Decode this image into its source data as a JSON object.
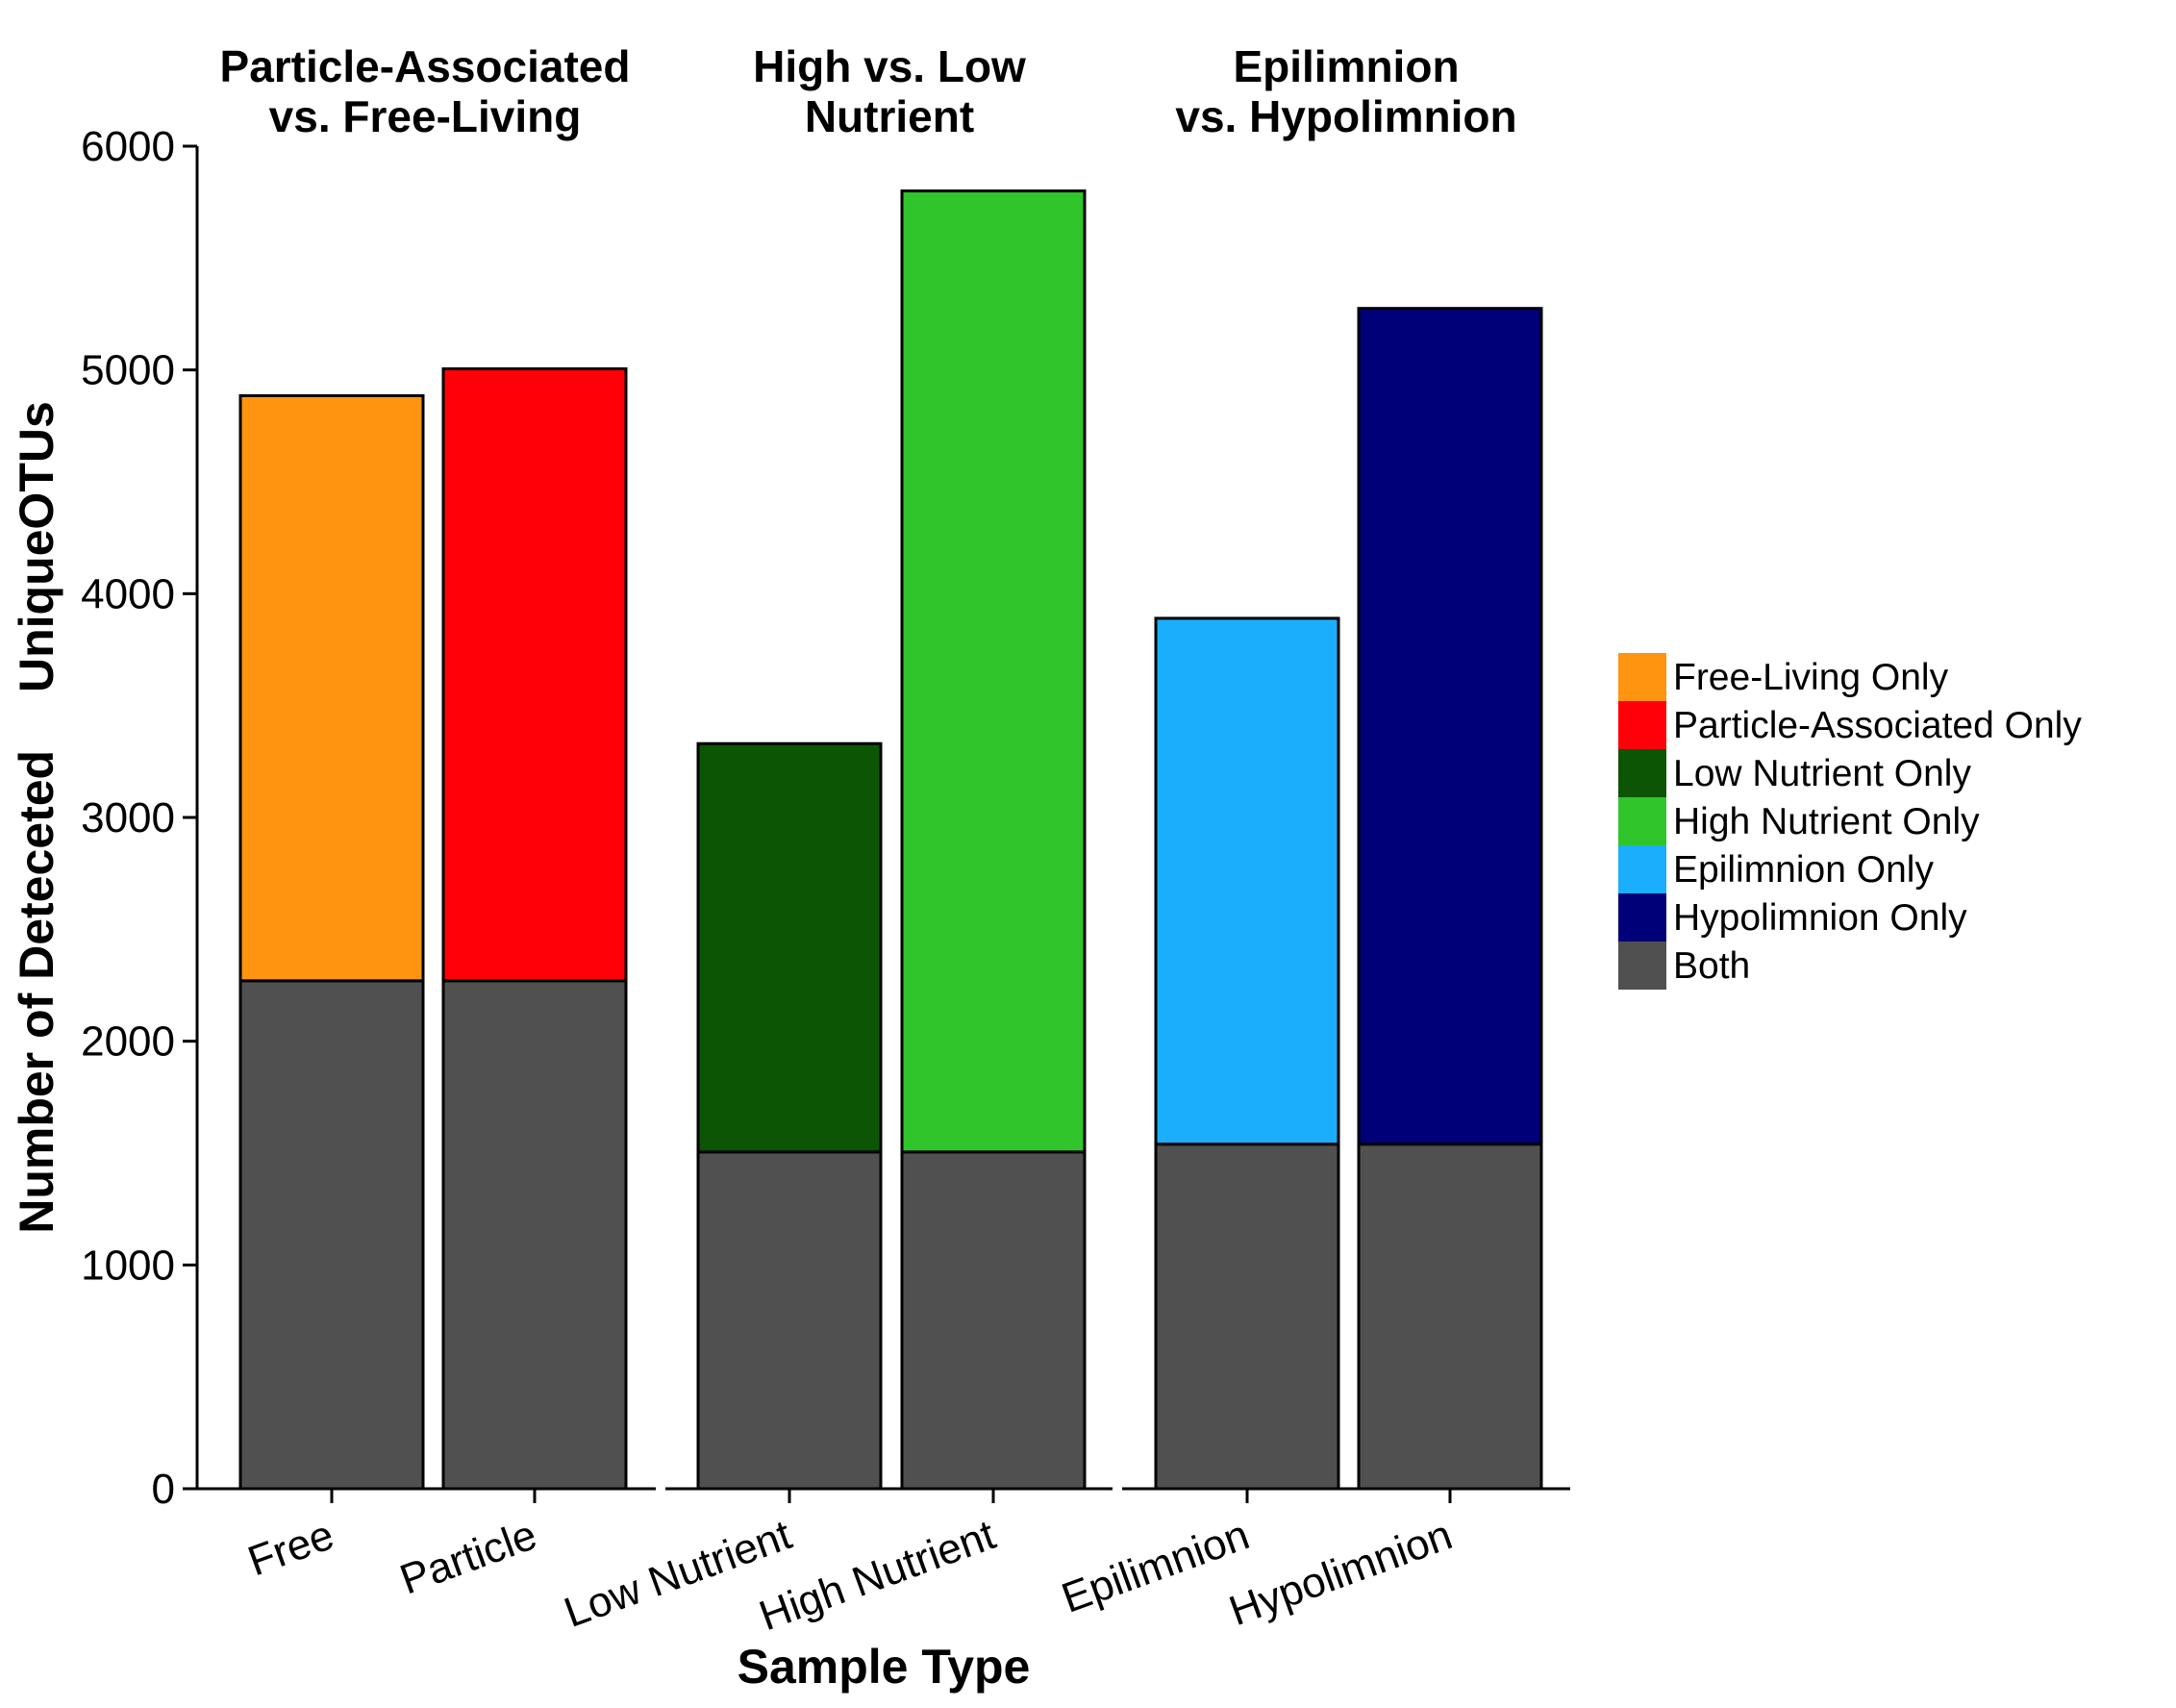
{
  "chart_data": {
    "type": "bar",
    "stacked": true,
    "xlabel": "Sample Type",
    "ylabel": "Number of Detecetedᅠ UniqueOTUs",
    "ylim": [
      0,
      6000
    ],
    "yticks": [
      0,
      1000,
      2000,
      3000,
      4000,
      5000,
      6000
    ],
    "grid": false,
    "legend_position": "right",
    "legend": [
      {
        "name": "Free-Living Only",
        "color": "#FF9410"
      },
      {
        "name": "Particle-Associated Only",
        "color": "#FF0008"
      },
      {
        "name": "Low Nutrient Only",
        "color": "#0B5504"
      },
      {
        "name": "High Nutrient Only",
        "color": "#30C52A"
      },
      {
        "name": "Epilimnion Only",
        "color": "#1AAEFC"
      },
      {
        "name": "Hypolimnion Only",
        "color": "#000078"
      },
      {
        "name": "Both",
        "color": "#505050"
      }
    ],
    "panels": [
      {
        "title": [
          "Particle-Associated",
          "vs. Free-Living"
        ],
        "bars": [
          {
            "category": "Free",
            "both": 2270,
            "unique": 2615,
            "unique_series": "Free-Living Only"
          },
          {
            "category": "Particle",
            "both": 2270,
            "unique": 2735,
            "unique_series": "Particle-Associated Only"
          }
        ]
      },
      {
        "title": [
          "High  vs. Low",
          "Nutrient"
        ],
        "bars": [
          {
            "category": "Low Nutrient",
            "both": 1505,
            "unique": 1825,
            "unique_series": "Low Nutrient Only"
          },
          {
            "category": "High Nutrient",
            "both": 1505,
            "unique": 4295,
            "unique_series": "High Nutrient Only"
          }
        ]
      },
      {
        "title": [
          "Epilimnion",
          "vs. Hypolimnion"
        ],
        "bars": [
          {
            "category": "Epilimnion",
            "both": 1540,
            "unique": 2350,
            "unique_series": "Epilimnion Only"
          },
          {
            "category": "Hypolimnion",
            "both": 1540,
            "unique": 3735,
            "unique_series": "Hypolimnion Only"
          }
        ]
      }
    ]
  }
}
